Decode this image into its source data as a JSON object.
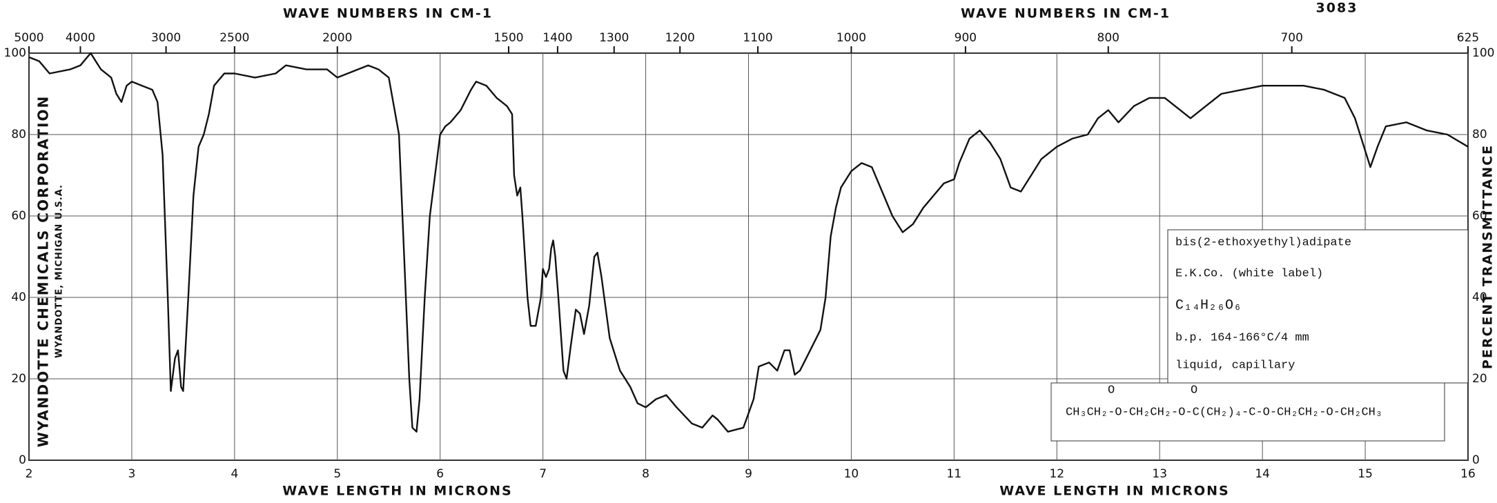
{
  "chart_data": {
    "type": "line",
    "serial": "3083",
    "x2labels": [
      "WAVE NUMBERS IN CM-1",
      "WAVE NUMBERS IN CM-1"
    ],
    "x2ticks": [
      5000,
      4000,
      3000,
      2500,
      2000,
      1500,
      1400,
      1300,
      1200,
      1100,
      1000,
      900,
      800,
      700,
      625
    ],
    "xlabels": [
      "WAVE LENGTH IN MICRONS",
      "WAVE LENGTH IN MICRONS"
    ],
    "ylabel": "PERCENT TRANSMITTANCE",
    "company": [
      "WYANDOTTE CHEMICALS CORPORATION",
      "WYANDOTTE, MICHIGAN U.S.A."
    ],
    "annotations": [
      "bis(2-ethoxyethyl)adipate",
      "E.K.Co. (white label)",
      "C₁₄H₂₆O₆",
      "b.p. 164-166°C/4 mm",
      "liquid, capillary"
    ],
    "formula": "CH₃CH₂-O-CH₂CH₂-O-C(CH₂)₄-C-O-CH₂CH₂-O-CH₂CH₃",
    "formula_oxygens": [
      "O",
      "O"
    ],
    "xlim": [
      2,
      16
    ],
    "xticks": [
      2,
      3,
      4,
      5,
      6,
      7,
      8,
      9,
      10,
      11,
      12,
      13,
      14,
      15,
      16
    ],
    "ylim": [
      0,
      100
    ],
    "yticks": [
      0,
      20,
      40,
      60,
      80,
      100
    ],
    "grid": true,
    "color": "#111111",
    "x": [
      2.0,
      2.1,
      2.2,
      2.4,
      2.5,
      2.6,
      2.65,
      2.7,
      2.8,
      2.85,
      2.9,
      2.95,
      3.0,
      3.1,
      3.2,
      3.25,
      3.3,
      3.35,
      3.38,
      3.42,
      3.45,
      3.48,
      3.5,
      3.55,
      3.6,
      3.65,
      3.7,
      3.75,
      3.8,
      3.9,
      4.0,
      4.2,
      4.4,
      4.5,
      4.7,
      4.9,
      5.0,
      5.1,
      5.2,
      5.3,
      5.4,
      5.5,
      5.6,
      5.65,
      5.7,
      5.73,
      5.77,
      5.8,
      5.85,
      5.9,
      5.95,
      6.0,
      6.05,
      6.1,
      6.2,
      6.3,
      6.35,
      6.45,
      6.55,
      6.65,
      6.7,
      6.72,
      6.75,
      6.78,
      6.8,
      6.85,
      6.88,
      6.93,
      6.98,
      7.0,
      7.03,
      7.06,
      7.08,
      7.1,
      7.12,
      7.15,
      7.2,
      7.23,
      7.27,
      7.32,
      7.36,
      7.4,
      7.45,
      7.5,
      7.53,
      7.57,
      7.65,
      7.75,
      7.8,
      7.85,
      7.92,
      8.0,
      8.1,
      8.2,
      8.3,
      8.45,
      8.55,
      8.65,
      8.7,
      8.8,
      8.95,
      9.05,
      9.1,
      9.2,
      9.28,
      9.35,
      9.4,
      9.45,
      9.5,
      9.6,
      9.7,
      9.75,
      9.8,
      9.85,
      9.9,
      10.0,
      10.1,
      10.2,
      10.3,
      10.4,
      10.5,
      10.6,
      10.7,
      10.8,
      10.9,
      11.0,
      11.05,
      11.15,
      11.25,
      11.35,
      11.45,
      11.55,
      11.65,
      11.75,
      11.85,
      12.0,
      12.15,
      12.3,
      12.4,
      12.5,
      12.6,
      12.75,
      12.9,
      13.05,
      13.2,
      13.3,
      13.45,
      13.6,
      13.8,
      14.0,
      14.2,
      14.4,
      14.6,
      14.8,
      14.9,
      15.0,
      15.05,
      15.12,
      15.2,
      15.4,
      15.6,
      15.8,
      16.0
    ],
    "values": [
      99,
      98,
      95,
      96,
      97,
      100,
      98,
      96,
      94,
      90,
      88,
      92,
      93,
      92,
      91,
      88,
      75,
      40,
      17,
      25,
      27,
      18,
      17,
      40,
      65,
      77,
      80,
      85,
      92,
      95,
      95,
      94,
      95,
      97,
      96,
      96,
      94,
      95,
      96,
      97,
      96,
      94,
      80,
      50,
      20,
      8,
      7,
      15,
      40,
      60,
      70,
      80,
      82,
      83,
      86,
      91,
      93,
      92,
      89,
      87,
      85,
      70,
      65,
      67,
      60,
      40,
      33,
      33,
      40,
      47,
      45,
      47,
      52,
      54,
      50,
      40,
      22,
      20,
      28,
      37,
      36,
      31,
      38,
      50,
      51,
      45,
      30,
      22,
      20,
      18,
      14,
      13,
      15,
      16,
      13,
      9,
      8,
      11,
      10,
      7,
      8,
      15,
      23,
      24,
      22,
      27,
      27,
      21,
      22,
      27,
      32,
      40,
      55,
      62,
      67,
      71,
      73,
      72,
      66,
      60,
      56,
      58,
      62,
      65,
      68,
      69,
      73,
      79,
      81,
      78,
      74,
      67,
      66,
      70,
      74,
      77,
      79,
      80,
      84,
      86,
      83,
      87,
      89,
      89,
      86,
      84,
      87,
      90,
      91,
      92,
      92,
      92,
      91,
      89,
      84,
      76,
      72,
      77,
      82,
      83,
      81,
      80,
      77
    ]
  }
}
